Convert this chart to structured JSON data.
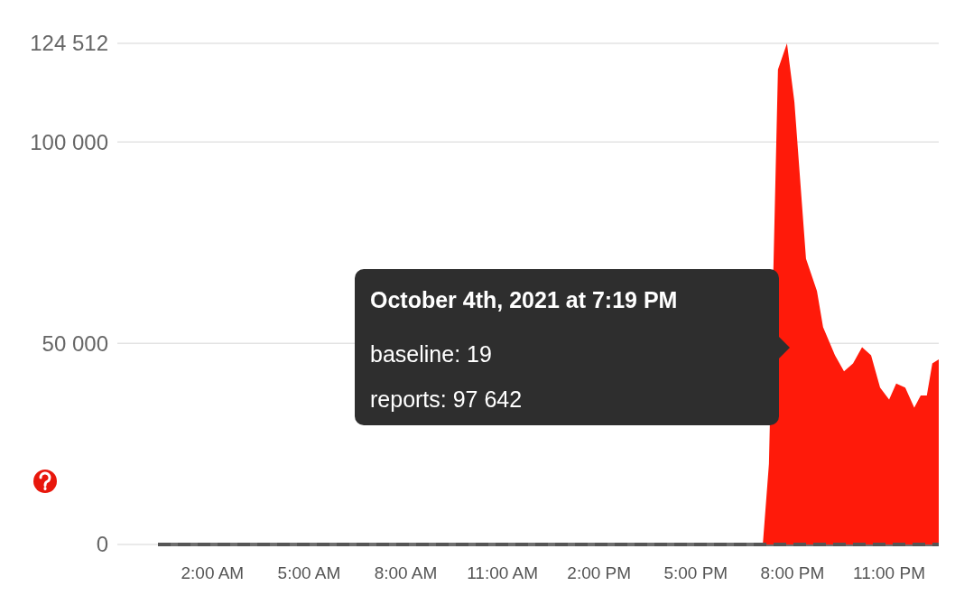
{
  "chart_data": {
    "type": "area",
    "series": [
      {
        "color": "#ff1a0a",
        "x": [
          0.31,
          19.08,
          19.27,
          19.55,
          19.83,
          20.06,
          20.42,
          20.76,
          20.95,
          21.32,
          21.6,
          21.88,
          22.16,
          22.44,
          22.72,
          23.0,
          23.22,
          23.5,
          23.78,
          23.98,
          24.17,
          24.34,
          24.54
        ],
        "values": [
          0,
          0,
          20000,
          118000,
          124512,
          110000,
          71000,
          63000,
          54000,
          47000,
          43000,
          45000,
          49000,
          47000,
          39000,
          36000,
          40000,
          39000,
          34000,
          37000,
          37000,
          45000,
          46000
        ]
      },
      {
        "type": "line",
        "color": "#555555",
        "line_style": "dashed",
        "x": [
          0.31,
          24.54
        ],
        "values": [
          19,
          19
        ]
      }
    ],
    "xlim": [
      0.31,
      24.54
    ],
    "xticks": [
      {
        "value": 2,
        "label": "2:00 AM"
      },
      {
        "value": 5,
        "label": "5:00 AM"
      },
      {
        "value": 8,
        "label": "8:00 AM"
      },
      {
        "value": 11,
        "label": "11:00 AM"
      },
      {
        "value": 14,
        "label": "2:00 PM"
      },
      {
        "value": 17,
        "label": "5:00 PM"
      },
      {
        "value": 20,
        "label": "8:00 PM"
      },
      {
        "value": 23,
        "label": "11:00 PM"
      }
    ],
    "ylim": [
      0,
      124512
    ],
    "yticks": [
      {
        "value": 0,
        "label": "0"
      },
      {
        "value": 50000,
        "label": "50 000"
      },
      {
        "value": 100000,
        "label": "100 000"
      },
      {
        "value": 124512,
        "label": "124 512"
      }
    ],
    "grid": "y",
    "annotations": [
      "October 4th, 2021 at 7:19 PM",
      "baseline: 19",
      "reports: 97 642"
    ]
  }
}
